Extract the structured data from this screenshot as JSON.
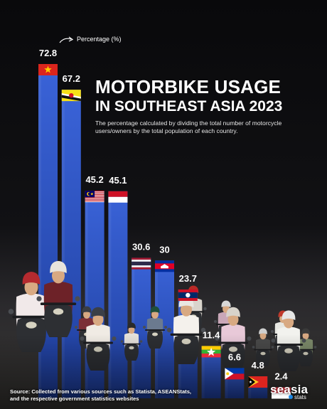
{
  "chart_data": {
    "type": "bar",
    "title": "MOTORBIKE USAGE",
    "subtitle": "IN SOUTHEAST ASIA 2023",
    "description": "The percentage calculated by dividing the total number of motorcycle users/owners by the total population of each country.",
    "value_label": "Percentage (%)",
    "ylim": [
      0,
      72.8
    ],
    "categories": [
      "Vietnam",
      "Brunei",
      "Malaysia",
      "Indonesia",
      "Thailand",
      "Cambodia",
      "Laos",
      "Myanmar",
      "Philippines",
      "Timor-Leste",
      "Singapore"
    ],
    "values": [
      72.8,
      67.2,
      45.2,
      45.1,
      30.6,
      30,
      23.7,
      11.4,
      6.6,
      4.8,
      2.4
    ],
    "value_labels": [
      "72.8",
      "67.2",
      "45.2",
      "45.1",
      "30.6",
      "30",
      "23.7",
      "11.4",
      "6.6",
      "4.8",
      "2.4"
    ],
    "bar_color": "#2f55c7",
    "bar_color_light": "#4a72e0"
  },
  "flags": [
    {
      "icon": "vietnam-flag-icon"
    },
    {
      "icon": "brunei-flag-icon"
    },
    {
      "icon": "malaysia-flag-icon"
    },
    {
      "icon": "indonesia-flag-icon"
    },
    {
      "icon": "thailand-flag-icon"
    },
    {
      "icon": "cambodia-flag-icon"
    },
    {
      "icon": "laos-flag-icon"
    },
    {
      "icon": "myanmar-flag-icon"
    },
    {
      "icon": "philippines-flag-icon"
    },
    {
      "icon": "timor-leste-flag-icon"
    },
    {
      "icon": "singapore-flag-icon"
    }
  ],
  "footer": {
    "source": "Source: Collected from various sources such as Statista, ASEANStats, and the respective government statistics websites",
    "logo_main": "seasia",
    "logo_sub": "stats"
  }
}
